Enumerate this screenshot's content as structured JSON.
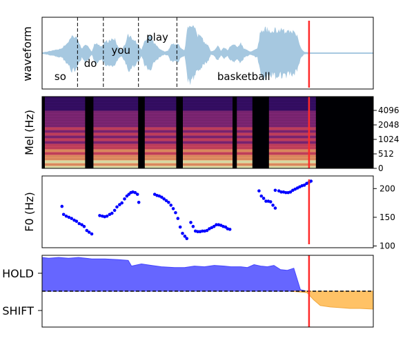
{
  "chart_data": [
    {
      "type": "area",
      "panel": "waveform",
      "ylabel": "waveform",
      "color": "#a6c8e0",
      "cursor_color": "#ff2a2a",
      "cursor_t": 0.806,
      "envelope": {
        "t": [
          0.0,
          0.06,
          0.08,
          0.09,
          0.1,
          0.11,
          0.12,
          0.13,
          0.14,
          0.15,
          0.16,
          0.17,
          0.18,
          0.19,
          0.2,
          0.21,
          0.22,
          0.23,
          0.24,
          0.25,
          0.26,
          0.27,
          0.28,
          0.29,
          0.3,
          0.31,
          0.32,
          0.33,
          0.34,
          0.35,
          0.36,
          0.37,
          0.38,
          0.39,
          0.4,
          0.41,
          0.42,
          0.43,
          0.44,
          0.45,
          0.46,
          0.47,
          0.48,
          0.49,
          0.5,
          0.51,
          0.52,
          0.53,
          0.54,
          0.55,
          0.56,
          0.57,
          0.58,
          0.59,
          0.6,
          0.61,
          0.62,
          0.63,
          0.64,
          0.65,
          0.66,
          0.67,
          0.68,
          0.69,
          0.7,
          0.71,
          0.72,
          0.73,
          0.74,
          0.75,
          0.76,
          0.77,
          0.78,
          0.79,
          0.8,
          0.81,
          1.0
        ],
        "amp": [
          0.02,
          0.15,
          0.42,
          0.58,
          0.55,
          0.4,
          0.15,
          0.3,
          0.2,
          0.05,
          0.35,
          0.3,
          0.2,
          0.42,
          0.38,
          0.5,
          0.45,
          0.2,
          0.1,
          0.28,
          0.6,
          0.5,
          0.4,
          0.3,
          0.1,
          0.4,
          0.58,
          0.5,
          0.3,
          0.2,
          0.1,
          0.05,
          0.08,
          0.3,
          0.3,
          0.3,
          0.15,
          0.1,
          0.88,
          0.95,
          0.85,
          0.6,
          0.55,
          0.35,
          0.3,
          0.05,
          0.1,
          0.25,
          0.08,
          0.2,
          0.1,
          0.25,
          0.3,
          0.2,
          0.35,
          0.15,
          0.1,
          0.05,
          0.1,
          0.15,
          0.75,
          0.8,
          0.8,
          0.78,
          0.78,
          0.76,
          0.75,
          0.75,
          0.74,
          0.72,
          0.7,
          0.62,
          0.2,
          0.05,
          0.03,
          0.02,
          0.02
        ]
      },
      "word_boundaries": [
        0.107,
        0.185,
        0.291,
        0.407
      ],
      "words": [
        {
          "text": "so",
          "t": 0.055,
          "row": "low"
        },
        {
          "text": "do",
          "t": 0.146,
          "row": "mid"
        },
        {
          "text": "you",
          "t": 0.238,
          "row": "mid2"
        },
        {
          "text": "play",
          "t": 0.348,
          "row": "high"
        },
        {
          "text": "basketball",
          "t": 0.609,
          "row": "low"
        }
      ]
    },
    {
      "type": "heatmap",
      "panel": "mel",
      "ylabel": "Mel (Hz)",
      "yticks": [
        "0",
        "512",
        "1024",
        "2048",
        "4096"
      ],
      "active_until_t": 0.835,
      "dark_gaps_t": [
        [
          0.13,
          0.155
        ],
        [
          0.29,
          0.31
        ],
        [
          0.405,
          0.425
        ],
        [
          0.575,
          0.588
        ],
        [
          0.635,
          0.685
        ]
      ],
      "colors": {
        "bg": "#000004",
        "low": "#3b0f70",
        "mid": "#8c2981",
        "high": "#de4968",
        "peak": "#fe9f6d",
        "top": "#fcfdbf"
      }
    },
    {
      "type": "scatter",
      "panel": "f0",
      "ylabel": "F0 (Hz)",
      "yticks": [
        100,
        150,
        200
      ],
      "ylim": [
        97,
        222
      ],
      "color": "#0000ff",
      "x": [
        0.06,
        0.065,
        0.073,
        0.081,
        0.089,
        0.097,
        0.104,
        0.112,
        0.12,
        0.127,
        0.135,
        0.142,
        0.15,
        0.174,
        0.182,
        0.189,
        0.196,
        0.204,
        0.211,
        0.219,
        0.226,
        0.234,
        0.241,
        0.249,
        0.256,
        0.262,
        0.268,
        0.274,
        0.281,
        0.288,
        0.292,
        0.34,
        0.347,
        0.354,
        0.361,
        0.368,
        0.375,
        0.382,
        0.389,
        0.396,
        0.403,
        0.41,
        0.417,
        0.424,
        0.431,
        0.437,
        0.449,
        0.456,
        0.463,
        0.47,
        0.477,
        0.484,
        0.491,
        0.498,
        0.505,
        0.512,
        0.519,
        0.526,
        0.533,
        0.54,
        0.547,
        0.554,
        0.56,
        0.567,
        0.655,
        0.662,
        0.669,
        0.676,
        0.683,
        0.69,
        0.697,
        0.704,
        0.704,
        0.715,
        0.722,
        0.729,
        0.736,
        0.743,
        0.75,
        0.757,
        0.764,
        0.771,
        0.778,
        0.785,
        0.792,
        0.799,
        0.806,
        0.812
      ],
      "y": [
        169,
        155,
        152,
        150,
        148,
        145,
        143,
        139,
        137,
        134,
        127,
        124,
        121,
        153,
        152,
        151,
        152,
        155,
        157,
        162,
        168,
        172,
        175,
        182,
        187,
        190,
        193,
        194,
        193,
        190,
        176,
        190,
        188,
        187,
        185,
        182,
        179,
        176,
        171,
        165,
        158,
        148,
        133,
        122,
        117,
        113,
        141,
        134,
        126,
        125,
        125,
        126,
        126,
        127,
        130,
        132,
        134,
        137,
        137,
        136,
        134,
        133,
        130,
        129,
        196,
        187,
        183,
        178,
        178,
        177,
        171,
        166,
        197,
        196,
        194,
        194,
        193,
        193,
        194,
        197,
        199,
        201,
        203,
        205,
        206,
        209,
        211,
        213
      ],
      "cursor_t": 0.806
    },
    {
      "type": "area",
      "panel": "turn",
      "categories": [
        "HOLD",
        "SHIFT"
      ],
      "baseline": 0.5,
      "hold_color": "#6666ff",
      "shift_color": "#ffc266",
      "x": [
        0.0,
        0.02,
        0.05,
        0.08,
        0.11,
        0.15,
        0.19,
        0.23,
        0.26,
        0.27,
        0.3,
        0.33,
        0.36,
        0.4,
        0.43,
        0.46,
        0.49,
        0.52,
        0.55,
        0.57,
        0.6,
        0.62,
        0.64,
        0.66,
        0.68,
        0.7,
        0.72,
        0.74,
        0.76,
        0.78,
        0.8,
        0.82,
        0.84,
        0.87,
        0.9,
        0.93,
        0.96,
        1.0
      ],
      "y": [
        0.97,
        0.96,
        0.97,
        0.96,
        0.97,
        0.95,
        0.95,
        0.94,
        0.93,
        0.85,
        0.88,
        0.86,
        0.84,
        0.83,
        0.83,
        0.85,
        0.84,
        0.86,
        0.85,
        0.84,
        0.84,
        0.83,
        0.87,
        0.85,
        0.84,
        0.86,
        0.8,
        0.79,
        0.82,
        0.52,
        0.48,
        0.38,
        0.3,
        0.28,
        0.27,
        0.26,
        0.26,
        0.25
      ],
      "cursor_t": 0.806
    }
  ]
}
